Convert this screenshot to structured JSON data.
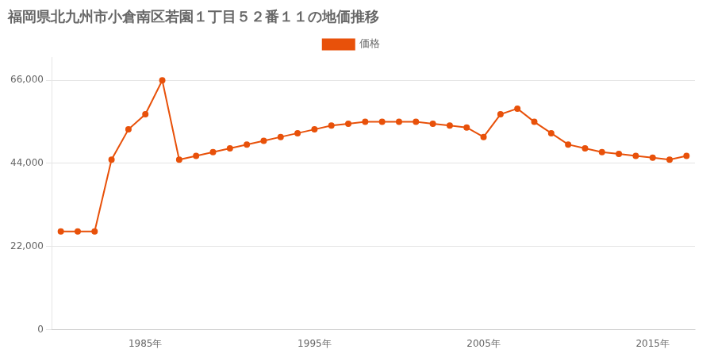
{
  "chart_data": {
    "type": "line",
    "title": "福岡県北九州市小倉南区若園１丁目５２番１１の地価推移",
    "x": [
      1980,
      1981,
      1982,
      1983,
      1984,
      1985,
      1986,
      1987,
      1988,
      1989,
      1990,
      1991,
      1992,
      1993,
      1994,
      1995,
      1996,
      1997,
      1998,
      1999,
      2000,
      2001,
      2002,
      2003,
      2004,
      2005,
      2006,
      2007,
      2008,
      2009,
      2010,
      2011,
      2012,
      2013,
      2014,
      2015,
      2016,
      2017
    ],
    "series": [
      {
        "name": "価格",
        "color": "#E8510A",
        "values": [
          26000,
          26000,
          26000,
          45000,
          53000,
          57000,
          66000,
          45000,
          46000,
          47000,
          48000,
          49000,
          50000,
          51000,
          52000,
          53000,
          54000,
          54500,
          55000,
          55000,
          55000,
          55000,
          54500,
          54000,
          53500,
          51000,
          57000,
          58500,
          55000,
          52000,
          49000,
          48000,
          47000,
          46500,
          46000,
          45500,
          45000,
          46000
        ]
      }
    ],
    "xlim": [
      1979.5,
      2017.5
    ],
    "xticks": [
      {
        "value": 1985,
        "label": "1985年"
      },
      {
        "value": 1995,
        "label": "1995年"
      },
      {
        "value": 2005,
        "label": "2005年"
      },
      {
        "value": 2015,
        "label": "2015年"
      }
    ],
    "ylim": [
      0,
      72000
    ],
    "yticks": [
      0,
      {
        "value": 22000,
        "label": "22,000"
      },
      {
        "value": 44000,
        "label": "44,000"
      },
      {
        "value": 66000,
        "label": "66,000"
      }
    ],
    "grid": "y",
    "legend": "top",
    "marker": "circle"
  }
}
